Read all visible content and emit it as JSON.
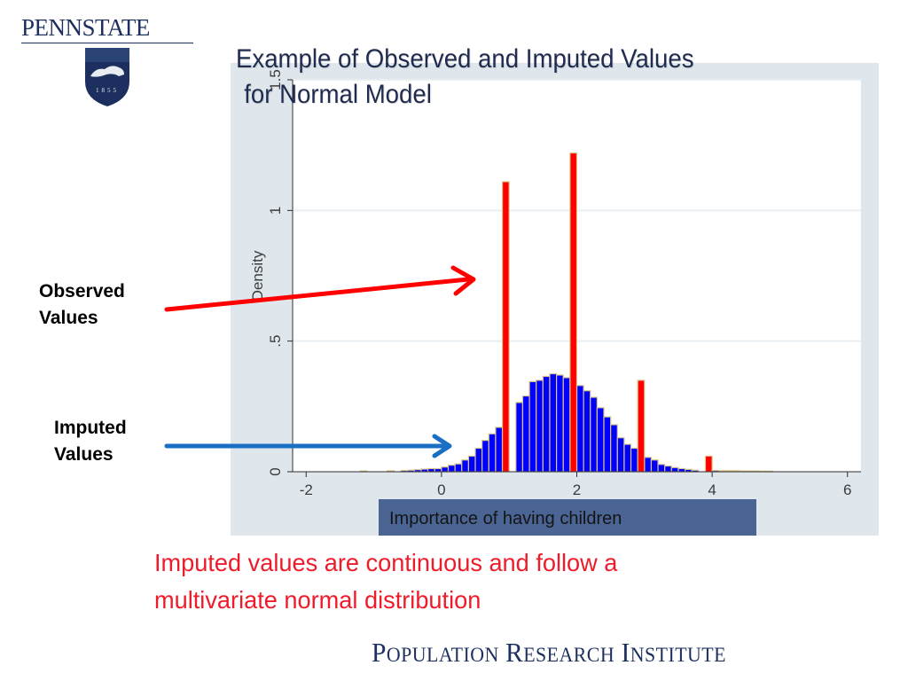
{
  "logo": {
    "wordmark": "PENNSTATE",
    "seal_text": "1855"
  },
  "title": {
    "line1": "Example of Observed and Imputed Values",
    "line2": "for Normal Model"
  },
  "annotations": {
    "observed": {
      "line1": "Observed",
      "line2": "Values"
    },
    "imputed": {
      "line1": "Imputed",
      "line2": "Values"
    }
  },
  "caption": {
    "line1": "Imputed values are continuous and follow a",
    "line2": "multivariate normal distribution"
  },
  "footer": {
    "text": "Population Research Institute"
  },
  "colors": {
    "observed_bar": "#ff0000",
    "imputed_bar": "#0000ff",
    "observed_arrow": "#ff0000",
    "imputed_arrow": "#1a6fc4",
    "caption": "#ee1c2b",
    "panel_bg": "#dfe7ed",
    "axis_label_box": "#4a6494",
    "brand_navy": "#1c2f5e"
  },
  "chart_data": {
    "type": "bar",
    "subtype": "histogram",
    "title": "",
    "xlabel": "Importance of having children",
    "ylabel": "Density",
    "xlim": [
      -2.2,
      6.2
    ],
    "ylim": [
      0,
      1.5
    ],
    "xticks": [
      -2,
      0,
      2,
      4,
      6
    ],
    "xtick_labels": [
      "-2",
      "0",
      "2",
      "4",
      "6"
    ],
    "yticks": [
      0,
      0.5,
      1,
      1.5
    ],
    "ytick_labels": [
      "0",
      ".5",
      "1",
      "1.5"
    ],
    "grid": true,
    "legend": "none",
    "bin_width": 0.1,
    "series": [
      {
        "name": "Imputed",
        "color": "#0000ff",
        "bins": [
          {
            "x": -1.2,
            "y": 0.003
          },
          {
            "x": -0.8,
            "y": 0.004
          },
          {
            "x": -0.6,
            "y": 0.005
          },
          {
            "x": -0.5,
            "y": 0.006
          },
          {
            "x": -0.4,
            "y": 0.008
          },
          {
            "x": -0.3,
            "y": 0.01
          },
          {
            "x": -0.2,
            "y": 0.012
          },
          {
            "x": -0.1,
            "y": 0.012
          },
          {
            "x": 0.0,
            "y": 0.018
          },
          {
            "x": 0.1,
            "y": 0.025
          },
          {
            "x": 0.2,
            "y": 0.03
          },
          {
            "x": 0.3,
            "y": 0.045
          },
          {
            "x": 0.4,
            "y": 0.06
          },
          {
            "x": 0.5,
            "y": 0.09
          },
          {
            "x": 0.6,
            "y": 0.12
          },
          {
            "x": 0.7,
            "y": 0.145
          },
          {
            "x": 0.8,
            "y": 0.17
          },
          {
            "x": 1.1,
            "y": 0.265
          },
          {
            "x": 1.2,
            "y": 0.29
          },
          {
            "x": 1.3,
            "y": 0.345
          },
          {
            "x": 1.4,
            "y": 0.35
          },
          {
            "x": 1.5,
            "y": 0.365
          },
          {
            "x": 1.6,
            "y": 0.375
          },
          {
            "x": 1.7,
            "y": 0.37
          },
          {
            "x": 1.8,
            "y": 0.36
          },
          {
            "x": 2.0,
            "y": 0.33
          },
          {
            "x": 2.1,
            "y": 0.31
          },
          {
            "x": 2.2,
            "y": 0.285
          },
          {
            "x": 2.3,
            "y": 0.245
          },
          {
            "x": 2.4,
            "y": 0.21
          },
          {
            "x": 2.5,
            "y": 0.18
          },
          {
            "x": 2.6,
            "y": 0.13
          },
          {
            "x": 2.7,
            "y": 0.105
          },
          {
            "x": 2.8,
            "y": 0.09
          },
          {
            "x": 3.0,
            "y": 0.055
          },
          {
            "x": 3.1,
            "y": 0.045
          },
          {
            "x": 3.2,
            "y": 0.028
          },
          {
            "x": 3.3,
            "y": 0.022
          },
          {
            "x": 3.4,
            "y": 0.016
          },
          {
            "x": 3.5,
            "y": 0.012
          },
          {
            "x": 3.6,
            "y": 0.009
          },
          {
            "x": 3.7,
            "y": 0.006
          },
          {
            "x": 4.0,
            "y": 0.005
          },
          {
            "x": 4.1,
            "y": 0.004
          },
          {
            "x": 4.2,
            "y": 0.004
          },
          {
            "x": 4.3,
            "y": 0.004
          },
          {
            "x": 4.4,
            "y": 0.003
          },
          {
            "x": 4.5,
            "y": 0.003
          },
          {
            "x": 4.6,
            "y": 0.003
          },
          {
            "x": 4.7,
            "y": 0.002
          },
          {
            "x": 4.8,
            "y": 0.002
          }
        ]
      },
      {
        "name": "Observed",
        "color": "#ff0000",
        "bins": [
          {
            "x": 0.9,
            "y": 1.11
          },
          {
            "x": 1.9,
            "y": 1.22
          },
          {
            "x": 2.9,
            "y": 0.35
          },
          {
            "x": 3.9,
            "y": 0.06
          }
        ]
      }
    ]
  }
}
